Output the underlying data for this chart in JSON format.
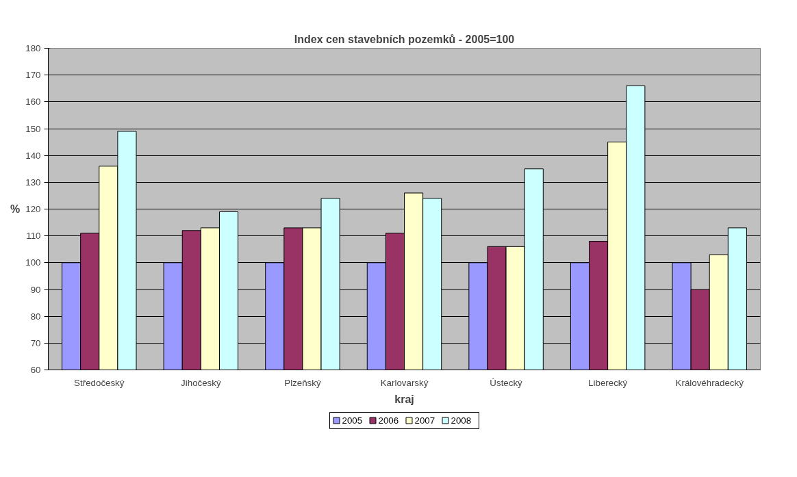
{
  "chart_data": {
    "type": "bar",
    "title": "Index cen stavebních pozemků - 2005=100",
    "xlabel": "kraj",
    "ylabel": "%",
    "categories": [
      "Středočeský",
      "Jihočeský",
      "Plzeňský",
      "Karlovarský",
      "Ústecký",
      "Liberecký",
      "Královéhradecký"
    ],
    "series": [
      {
        "name": "2005",
        "color": "#9999ff",
        "values": [
          100,
          100,
          100,
          100,
          100,
          100,
          100
        ]
      },
      {
        "name": "2006",
        "color": "#993366",
        "values": [
          111,
          112,
          113,
          111,
          106,
          108,
          90
        ]
      },
      {
        "name": "2007",
        "color": "#ffffcc",
        "values": [
          136,
          113,
          113,
          126,
          106,
          145,
          103
        ]
      },
      {
        "name": "2008",
        "color": "#ccffff",
        "values": [
          149,
          119,
          124,
          124,
          135,
          166,
          113
        ]
      }
    ],
    "ylim": [
      60,
      180
    ],
    "yticks": [
      60,
      70,
      80,
      90,
      100,
      110,
      120,
      130,
      140,
      150,
      160,
      170,
      180
    ],
    "grid": "y",
    "legend": "bottom"
  }
}
